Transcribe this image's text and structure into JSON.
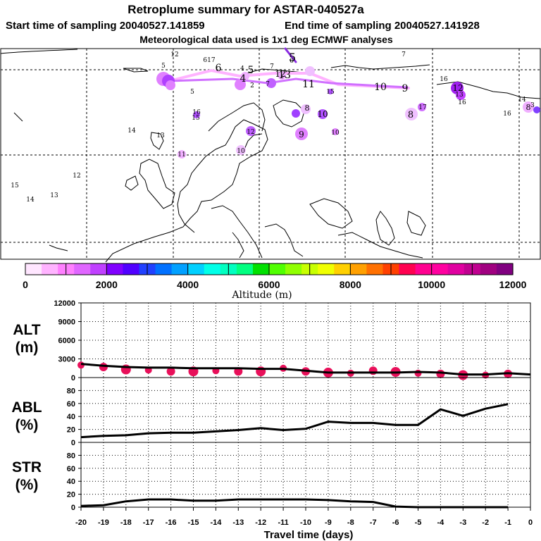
{
  "header": {
    "title": "Retroplume summary for ASTAR-040527a",
    "start_label": "Start time of sampling 20040527.141859",
    "end_label": "End time of sampling 20040527.141928",
    "met_label": "Meteorological data used is 1x1 deg ECMWF analyses"
  },
  "colorbar": {
    "label": "Altitude (m)",
    "tick_labels": [
      "0",
      "2000",
      "4000",
      "6000",
      "8000",
      "10000",
      "12000"
    ],
    "colors": [
      "#ffe6ff",
      "#ffb3ff",
      "#ff80ff",
      "#e066ff",
      "#c040ff",
      "#8000ff",
      "#5000ff",
      "#2040ff",
      "#0070ff",
      "#00a0ff",
      "#00d0ff",
      "#00ffe8",
      "#00ffc0",
      "#00ff80",
      "#00e000",
      "#50ff00",
      "#90ff00",
      "#c8ff00",
      "#f0ff00",
      "#ffd000",
      "#ffa000",
      "#ff7000",
      "#ff4000",
      "#ff0050",
      "#ff0090",
      "#ff00a0",
      "#e000a0",
      "#c00090",
      "#a00080",
      "#800080"
    ]
  },
  "map_labels": [
    {
      "text": "12",
      "size": 9
    },
    {
      "text": "5",
      "size": 9
    },
    {
      "text": "617",
      "size": 9
    },
    {
      "text": "6",
      "size": 14
    },
    {
      "text": "4",
      "size": 9
    },
    {
      "text": "5",
      "size": 14
    },
    {
      "text": "7",
      "size": 9
    },
    {
      "text": "6",
      "size": 9
    },
    {
      "text": "5",
      "size": 16
    },
    {
      "text": "4",
      "size": 14
    },
    {
      "text": "2",
      "size": 9
    },
    {
      "text": "12",
      "size": 12
    },
    {
      "text": "13",
      "size": 14
    },
    {
      "text": "11",
      "size": 14
    },
    {
      "text": "7",
      "size": 9
    },
    {
      "text": "10",
      "size": 14
    },
    {
      "text": "9",
      "size": 14
    },
    {
      "text": "16",
      "size": 9
    },
    {
      "text": "12",
      "size": 12
    },
    {
      "text": "13",
      "size": 9
    },
    {
      "text": "16",
      "size": 9
    },
    {
      "text": "5",
      "size": 9
    },
    {
      "text": "15",
      "size": 9
    },
    {
      "text": "16",
      "size": 9
    },
    {
      "text": "15",
      "size": 9
    },
    {
      "text": "8",
      "size": 11
    },
    {
      "text": "10",
      "size": 12
    },
    {
      "text": "14",
      "size": 9
    },
    {
      "text": "13",
      "size": 9
    },
    {
      "text": "12",
      "size": 9
    },
    {
      "text": "9",
      "size": 12
    },
    {
      "text": "10",
      "size": 9
    },
    {
      "text": "11",
      "size": 9
    },
    {
      "text": "10",
      "size": 9
    },
    {
      "text": "12",
      "size": 9
    },
    {
      "text": "15",
      "size": 9
    },
    {
      "text": "14",
      "size": 9
    },
    {
      "text": "13",
      "size": 9
    },
    {
      "text": "16",
      "size": 9
    },
    {
      "text": "17",
      "size": 9
    },
    {
      "text": "8",
      "size": 13
    },
    {
      "text": "14",
      "size": 9
    },
    {
      "text": "3",
      "size": 9
    },
    {
      "text": "8",
      "size": 11
    },
    {
      "text": "7",
      "size": 9
    }
  ],
  "chart_data": [
    {
      "type": "scatter",
      "title": "ALT (m)",
      "ylabel": "ALT (m)",
      "ylim": [
        0,
        12000
      ],
      "yticks": [
        0,
        3000,
        6000,
        9000,
        12000
      ],
      "ytick_labels": [
        "0",
        "3000",
        "6000",
        "9000",
        "12000"
      ],
      "line_x": [
        -20,
        -19,
        -18,
        -17,
        -16,
        -15,
        -14,
        -13,
        -12,
        -11,
        -10,
        -9,
        -8,
        -7,
        -6,
        -5,
        -4,
        -3,
        -2,
        -1,
        0
      ],
      "line_y": [
        2200,
        1900,
        1700,
        1600,
        1600,
        1500,
        1500,
        1500,
        1400,
        1400,
        1100,
        800,
        800,
        800,
        800,
        900,
        800,
        500,
        500,
        700,
        500
      ],
      "points": [
        {
          "x": -20,
          "y": 2000
        },
        {
          "x": -19,
          "y": 1700
        },
        {
          "x": -18,
          "y": 1300
        },
        {
          "x": -17,
          "y": 1200
        },
        {
          "x": -16,
          "y": 1000
        },
        {
          "x": -15,
          "y": 1000
        },
        {
          "x": -14,
          "y": 1100
        },
        {
          "x": -13,
          "y": 1000
        },
        {
          "x": -12,
          "y": 1000
        },
        {
          "x": -11,
          "y": 1500
        },
        {
          "x": -10,
          "y": 1000
        },
        {
          "x": -9,
          "y": 800
        },
        {
          "x": -8,
          "y": 700
        },
        {
          "x": -7,
          "y": 1100
        },
        {
          "x": -6,
          "y": 900
        },
        {
          "x": -5,
          "y": 700
        },
        {
          "x": -4,
          "y": 600
        },
        {
          "x": -3,
          "y": 400
        },
        {
          "x": -2,
          "y": 400
        },
        {
          "x": -1,
          "y": 600
        }
      ]
    },
    {
      "type": "line",
      "title": "ABL (%)",
      "ylabel": "ABL (%)",
      "ylim": [
        0,
        100
      ],
      "yticks": [
        0,
        20,
        40,
        60,
        80
      ],
      "ytick_labels": [
        "0",
        "20",
        "40",
        "60",
        "80"
      ],
      "x": [
        -20,
        -19,
        -18,
        -17,
        -16,
        -15,
        -14,
        -13,
        -12,
        -11,
        -10,
        -9,
        -8,
        -7,
        -6,
        -5,
        -4,
        -3,
        -2,
        -1
      ],
      "values": [
        8,
        10,
        11,
        14,
        15,
        15,
        17,
        19,
        22,
        19,
        21,
        32,
        30,
        30,
        27,
        27,
        51,
        41,
        52,
        59
      ]
    },
    {
      "type": "line",
      "title": "STR (%)",
      "ylabel": "STR (%)",
      "ylim": [
        0,
        100
      ],
      "yticks": [
        0,
        20,
        40,
        60,
        80
      ],
      "ytick_labels": [
        "0",
        "20",
        "40",
        "60",
        "80"
      ],
      "x": [
        -20,
        -19,
        -18,
        -17,
        -16,
        -15,
        -14,
        -13,
        -12,
        -11,
        -10,
        -9,
        -8,
        -7,
        -6,
        -5,
        -4,
        -3,
        -2,
        -1
      ],
      "values": [
        2,
        3,
        9,
        12,
        12,
        10,
        10,
        12,
        12,
        12,
        12,
        11,
        9,
        8,
        1,
        0,
        0,
        0,
        0,
        0
      ]
    }
  ],
  "xaxis": {
    "label": "Travel time (days)",
    "ticks": [
      -20,
      -19,
      -18,
      -17,
      -16,
      -15,
      -14,
      -13,
      -12,
      -11,
      -10,
      -9,
      -8,
      -7,
      -6,
      -5,
      -4,
      -3,
      -2,
      -1,
      0
    ],
    "tick_labels": [
      "-20",
      "-19",
      "-18",
      "-17",
      "-16",
      "-15",
      "-14",
      "-13",
      "-12",
      "-11",
      "-10",
      "-9",
      "-8",
      "-7",
      "-6",
      "-5",
      "-4",
      "-3",
      "-2",
      "-1",
      "0"
    ]
  },
  "panel_labels": {
    "alt_line1": "ALT",
    "alt_line2": "(m)",
    "abl_line1": "ABL",
    "abl_line2": "(%)",
    "str_line1": "STR",
    "str_line2": "(%)"
  }
}
